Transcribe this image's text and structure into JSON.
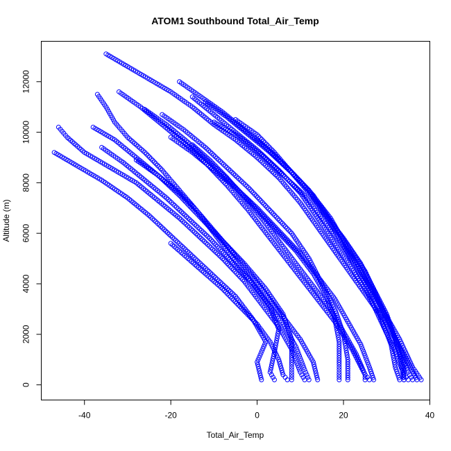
{
  "chart_data": {
    "type": "scatter",
    "title": "ATOM1 Southbound Total_Air_Temp",
    "xlabel": "Total_Air_Temp",
    "ylabel": "Altitude (m)",
    "xlim": [
      -50,
      40
    ],
    "ylim": [
      -600,
      13600
    ],
    "x_ticks": [
      -40,
      -20,
      0,
      20,
      40
    ],
    "y_ticks": [
      0,
      2000,
      4000,
      6000,
      8000,
      10000,
      12000
    ],
    "marker": "open-circle",
    "grid": false,
    "legend": "none",
    "color": "#0000ff",
    "series": [
      {
        "values": [
          [
            -35,
            13100
          ],
          [
            -30,
            12600
          ],
          [
            -25,
            12100
          ],
          [
            -20,
            11600
          ],
          [
            -15,
            11000
          ],
          [
            -10,
            10300
          ],
          [
            -5,
            9700
          ],
          [
            0,
            9000
          ],
          [
            5,
            8200
          ],
          [
            10,
            7200
          ],
          [
            15,
            6000
          ],
          [
            20,
            4800
          ],
          [
            25,
            3600
          ],
          [
            30,
            2400
          ],
          [
            34,
            1200
          ],
          [
            37,
            200
          ]
        ]
      },
      {
        "values": [
          [
            -18,
            12000
          ],
          [
            -13,
            11400
          ],
          [
            -8,
            10800
          ],
          [
            -3,
            10100
          ],
          [
            2,
            9400
          ],
          [
            7,
            8600
          ],
          [
            12,
            7700
          ],
          [
            17,
            6600
          ],
          [
            21,
            5400
          ],
          [
            25,
            4200
          ],
          [
            29,
            3000
          ],
          [
            33,
            1800
          ],
          [
            36,
            700
          ],
          [
            38,
            200
          ]
        ]
      },
      {
        "values": [
          [
            -32,
            11600
          ],
          [
            -27,
            11000
          ],
          [
            -22,
            10300
          ],
          [
            -17,
            9600
          ],
          [
            -12,
            8800
          ],
          [
            -7,
            7900
          ],
          [
            -2,
            6900
          ],
          [
            3,
            5800
          ],
          [
            8,
            4700
          ],
          [
            13,
            3600
          ],
          [
            18,
            2500
          ],
          [
            22,
            1400
          ],
          [
            25,
            400
          ],
          [
            26,
            200
          ]
        ]
      },
      {
        "values": [
          [
            -37,
            11500
          ],
          [
            -35,
            11000
          ],
          [
            -33,
            10400
          ],
          [
            -30,
            9800
          ],
          [
            -26,
            9200
          ],
          [
            -22,
            8500
          ],
          [
            -18,
            7700
          ],
          [
            -14,
            6900
          ],
          [
            -10,
            6000
          ],
          [
            -6,
            5100
          ],
          [
            -2,
            4200
          ],
          [
            2,
            3300
          ],
          [
            6,
            2400
          ],
          [
            9,
            1500
          ],
          [
            11,
            600
          ],
          [
            12,
            200
          ]
        ]
      },
      {
        "values": [
          [
            -46,
            10200
          ],
          [
            -44,
            9800
          ],
          [
            -40,
            9200
          ],
          [
            -34,
            8600
          ],
          [
            -28,
            8000
          ],
          [
            -23,
            7300
          ],
          [
            -18,
            6600
          ],
          [
            -13,
            5800
          ],
          [
            -8,
            5000
          ],
          [
            -3,
            4100
          ],
          [
            1,
            3200
          ],
          [
            5,
            2300
          ],
          [
            8,
            1400
          ],
          [
            10,
            500
          ],
          [
            11,
            200
          ]
        ]
      },
      {
        "values": [
          [
            -47,
            9200
          ],
          [
            -42,
            8700
          ],
          [
            -36,
            8100
          ],
          [
            -30,
            7400
          ],
          [
            -25,
            6700
          ],
          [
            -20,
            5900
          ],
          [
            -15,
            5100
          ],
          [
            -10,
            4300
          ],
          [
            -5,
            3500
          ],
          [
            -1,
            2600
          ],
          [
            2,
            1700
          ],
          [
            0,
            900
          ],
          [
            1,
            200
          ]
        ]
      },
      {
        "values": [
          [
            -36,
            9400
          ],
          [
            -31,
            8800
          ],
          [
            -26,
            8100
          ],
          [
            -21,
            7400
          ],
          [
            -16,
            6600
          ],
          [
            -11,
            5800
          ],
          [
            -6,
            4900
          ],
          [
            -1,
            4000
          ],
          [
            3,
            3100
          ],
          [
            5,
            2200
          ],
          [
            4,
            1300
          ],
          [
            3,
            500
          ],
          [
            4,
            200
          ]
        ]
      },
      {
        "values": [
          [
            -38,
            10200
          ],
          [
            -33,
            9700
          ],
          [
            -28,
            9000
          ],
          [
            -23,
            8300
          ],
          [
            -18,
            7500
          ],
          [
            -13,
            6600
          ],
          [
            -8,
            5700
          ],
          [
            -3,
            4800
          ],
          [
            2,
            3800
          ],
          [
            6,
            2800
          ],
          [
            8,
            1800
          ],
          [
            8,
            800
          ],
          [
            8,
            200
          ]
        ]
      },
      {
        "values": [
          [
            -22,
            10700
          ],
          [
            -17,
            10100
          ],
          [
            -12,
            9400
          ],
          [
            -7,
            8600
          ],
          [
            -2,
            7800
          ],
          [
            3,
            6900
          ],
          [
            8,
            6000
          ],
          [
            12,
            5000
          ],
          [
            15,
            4000
          ],
          [
            18,
            3000
          ],
          [
            20,
            2000
          ],
          [
            21,
            1000
          ],
          [
            21,
            200
          ]
        ]
      },
      {
        "values": [
          [
            -15,
            11400
          ],
          [
            -10,
            10700
          ],
          [
            -5,
            10000
          ],
          [
            0,
            9300
          ],
          [
            5,
            8500
          ],
          [
            10,
            7600
          ],
          [
            14,
            6600
          ],
          [
            18,
            5600
          ],
          [
            22,
            4600
          ],
          [
            26,
            3500
          ],
          [
            29,
            2400
          ],
          [
            32,
            1300
          ],
          [
            34,
            400
          ],
          [
            35,
            200
          ]
        ]
      },
      {
        "values": [
          [
            -12,
            11200
          ],
          [
            -7,
            10600
          ],
          [
            -2,
            9900
          ],
          [
            3,
            9200
          ],
          [
            8,
            8400
          ],
          [
            13,
            7500
          ],
          [
            17,
            6500
          ],
          [
            21,
            5500
          ],
          [
            25,
            4500
          ],
          [
            28,
            3400
          ],
          [
            31,
            2300
          ],
          [
            33,
            1200
          ],
          [
            34,
            200
          ]
        ]
      },
      {
        "values": [
          [
            -10,
            10400
          ],
          [
            -4,
            9800
          ],
          [
            1,
            9100
          ],
          [
            6,
            8300
          ],
          [
            11,
            7500
          ],
          [
            15,
            6600
          ],
          [
            19,
            5700
          ],
          [
            23,
            4700
          ],
          [
            27,
            3700
          ],
          [
            30,
            2600
          ],
          [
            33,
            1500
          ],
          [
            35,
            500
          ],
          [
            36,
            200
          ]
        ]
      },
      {
        "values": [
          [
            -20,
            9800
          ],
          [
            -15,
            9200
          ],
          [
            -10,
            8500
          ],
          [
            -5,
            7800
          ],
          [
            0,
            7000
          ],
          [
            5,
            6100
          ],
          [
            10,
            5200
          ],
          [
            14,
            4300
          ],
          [
            18,
            3400
          ],
          [
            21,
            2500
          ],
          [
            24,
            1600
          ],
          [
            26,
            700
          ],
          [
            27,
            200
          ]
        ]
      },
      {
        "values": [
          [
            -15,
            9500
          ],
          [
            -11,
            8900
          ],
          [
            -7,
            8200
          ],
          [
            -3,
            7400
          ],
          [
            1,
            6600
          ],
          [
            5,
            5700
          ],
          [
            9,
            4800
          ],
          [
            13,
            3900
          ],
          [
            17,
            3000
          ],
          [
            20,
            2100
          ],
          [
            23,
            1200
          ],
          [
            25,
            400
          ],
          [
            25,
            200
          ]
        ]
      },
      {
        "values": [
          [
            -26,
            10900
          ],
          [
            -21,
            10300
          ],
          [
            -16,
            9600
          ],
          [
            -11,
            8800
          ],
          [
            -6,
            8000
          ],
          [
            -1,
            7100
          ],
          [
            4,
            6200
          ],
          [
            9,
            5300
          ],
          [
            13,
            4400
          ],
          [
            16,
            3500
          ],
          [
            18,
            2600
          ],
          [
            19,
            1700
          ],
          [
            19,
            800
          ],
          [
            19,
            200
          ]
        ]
      },
      {
        "values": [
          [
            -5,
            10500
          ],
          [
            0,
            9900
          ],
          [
            4,
            9200
          ],
          [
            8,
            8400
          ],
          [
            12,
            7600
          ],
          [
            16,
            6700
          ],
          [
            20,
            5800
          ],
          [
            24,
            4800
          ],
          [
            27,
            3800
          ],
          [
            30,
            2800
          ],
          [
            32,
            1800
          ],
          [
            34,
            800
          ],
          [
            34,
            200
          ]
        ]
      },
      {
        "values": [
          [
            -28,
            8900
          ],
          [
            -23,
            8300
          ],
          [
            -18,
            7600
          ],
          [
            -14,
            6900
          ],
          [
            -10,
            6100
          ],
          [
            -6,
            5300
          ],
          [
            -2,
            4500
          ],
          [
            2,
            3600
          ],
          [
            6,
            2700
          ],
          [
            10,
            1800
          ],
          [
            13,
            900
          ],
          [
            14,
            200
          ]
        ]
      },
      {
        "values": [
          [
            -20,
            5600
          ],
          [
            -16,
            5000
          ],
          [
            -12,
            4400
          ],
          [
            -8,
            3800
          ],
          [
            -4,
            3100
          ],
          [
            0,
            2400
          ],
          [
            3,
            1700
          ],
          [
            5,
            1000
          ],
          [
            6,
            400
          ],
          [
            7,
            200
          ]
        ]
      },
      {
        "values": [
          [
            0,
            9700
          ],
          [
            4,
            9100
          ],
          [
            8,
            8400
          ],
          [
            12,
            7700
          ],
          [
            15,
            6900
          ],
          [
            18,
            6100
          ],
          [
            21,
            5200
          ],
          [
            24,
            4300
          ],
          [
            27,
            3400
          ],
          [
            29,
            2500
          ],
          [
            31,
            1600
          ],
          [
            32,
            700
          ],
          [
            33,
            200
          ]
        ]
      }
    ]
  }
}
